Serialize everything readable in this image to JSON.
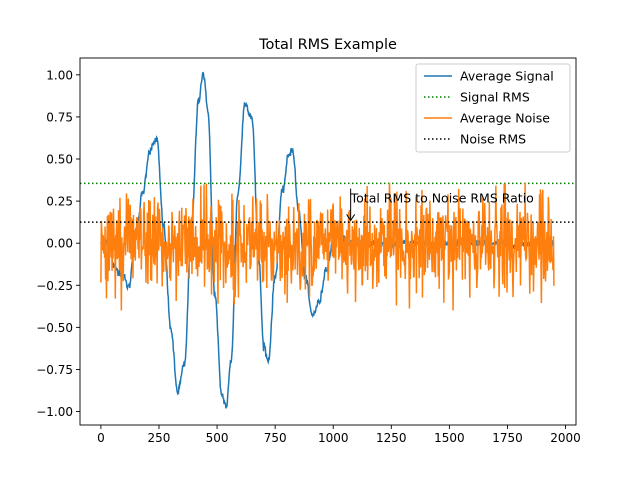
{
  "chart_data": {
    "type": "line",
    "title": "Total RMS Example",
    "xlabel": "",
    "ylabel": "",
    "xlim": [
      -90,
      2045
    ],
    "ylim": [
      -1.08,
      1.1
    ],
    "x_ticks": [
      0,
      250,
      500,
      750,
      1000,
      1250,
      1500,
      1750,
      2000
    ],
    "x_tick_labels": [
      "0",
      "250",
      "500",
      "750",
      "1000",
      "1250",
      "1500",
      "1750",
      "2000"
    ],
    "y_ticks": [
      -1.0,
      -0.75,
      -0.5,
      -0.25,
      0.0,
      0.25,
      0.5,
      0.75,
      1.0
    ],
    "y_tick_labels": [
      "−1.00",
      "−0.75",
      "−0.50",
      "−0.25",
      "0.00",
      "0.25",
      "0.50",
      "0.75",
      "1.00"
    ],
    "grid": false,
    "legend_position": "upper right",
    "series": [
      {
        "name": "Average Signal",
        "style": "solid",
        "color": "#1f77b4",
        "x": [
          0,
          30,
          60,
          90,
          120,
          150,
          180,
          210,
          240,
          270,
          300,
          330,
          360,
          390,
          420,
          440,
          460,
          490,
          520,
          540,
          560,
          590,
          620,
          650,
          680,
          700,
          720,
          750,
          780,
          810,
          825,
          850,
          880,
          910,
          940,
          970,
          1000,
          1020,
          1040,
          1060,
          1080,
          1100,
          1200,
          1300,
          1400,
          1500,
          1600,
          1700,
          1800,
          1900,
          1950
        ],
        "y": [
          0.0,
          0.02,
          -0.15,
          -0.18,
          -0.26,
          0.05,
          0.3,
          0.55,
          0.62,
          0.1,
          -0.5,
          -0.88,
          -0.72,
          0.1,
          0.85,
          1.01,
          0.8,
          -0.3,
          -0.9,
          -0.97,
          -0.7,
          0.3,
          0.83,
          0.75,
          -0.1,
          -0.6,
          -0.7,
          -0.2,
          0.3,
          0.53,
          0.56,
          0.2,
          -0.2,
          -0.43,
          -0.35,
          -0.15,
          0.0,
          0.04,
          0.03,
          -0.02,
          0.01,
          0.0,
          0.0,
          0.0,
          0.0,
          0.0,
          0.0,
          0.0,
          0.0,
          0.0,
          0.0
        ]
      },
      {
        "name": "Signal RMS",
        "style": "dotted",
        "color": "#008000",
        "constant": 0.355
      },
      {
        "name": "Average Noise",
        "style": "solid",
        "color": "#ff7f0e",
        "x_start": 0,
        "x_end": 1950,
        "amplitude": 0.13,
        "spike_max": 0.36,
        "spike_min": -0.4
      },
      {
        "name": "Noise RMS",
        "style": "dotted",
        "color": "#000000",
        "constant": 0.125
      }
    ],
    "annotations": [
      {
        "text": "Total RMS to Noise RMS Ratio",
        "text_x": 1075,
        "text_y": 0.265,
        "arrow_x": 1075,
        "arrow_y": 0.135
      }
    ]
  }
}
